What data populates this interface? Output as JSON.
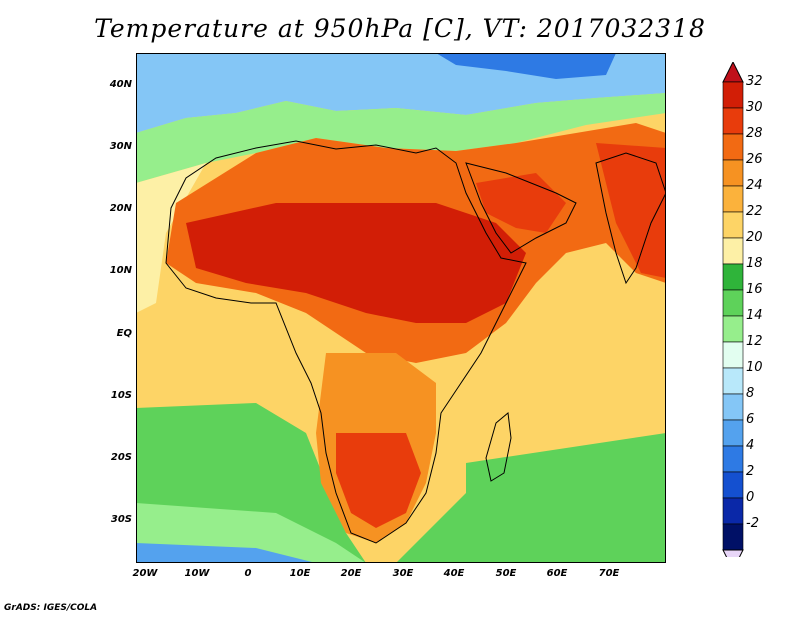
{
  "title": "Temperature at 950hPa [C], VT: 2017032318",
  "footer": "GrADS: IGES/COLA",
  "map": {
    "lon_range": [
      -23,
      80
    ],
    "lat_range": [
      -37,
      45
    ],
    "lat_ticks": [
      {
        "value": 40,
        "label": "40N"
      },
      {
        "value": 30,
        "label": "30N"
      },
      {
        "value": 20,
        "label": "20N"
      },
      {
        "value": 10,
        "label": "10N"
      },
      {
        "value": 0,
        "label": "EQ"
      },
      {
        "value": -10,
        "label": "10S"
      },
      {
        "value": -20,
        "label": "20S"
      },
      {
        "value": -30,
        "label": "30S"
      }
    ],
    "lon_ticks": [
      {
        "value": -20,
        "label": "20W"
      },
      {
        "value": -10,
        "label": "10W"
      },
      {
        "value": 0,
        "label": "0"
      },
      {
        "value": 10,
        "label": "10E"
      },
      {
        "value": 20,
        "label": "20E"
      },
      {
        "value": 30,
        "label": "30E"
      },
      {
        "value": 40,
        "label": "40E"
      },
      {
        "value": 50,
        "label": "50E"
      },
      {
        "value": 60,
        "label": "60E"
      },
      {
        "value": 70,
        "label": "70E"
      }
    ]
  },
  "colorbar": {
    "levels": [
      "32",
      "30",
      "28",
      "26",
      "24",
      "22",
      "20",
      "18",
      "16",
      "14",
      "12",
      "10",
      "8",
      "6",
      "4",
      "2",
      "0",
      "-2"
    ],
    "colors": [
      "#d21e06",
      "#e83c0c",
      "#f26a13",
      "#f69222",
      "#fbb23c",
      "#fdd466",
      "#fdf0a6",
      "#2fb43a",
      "#5ed25a",
      "#96ee8c",
      "#e2fef0",
      "#b8e8fa",
      "#84c6f6",
      "#54a2ee",
      "#2e7ae4",
      "#1450d0",
      "#0a28a8",
      "#001066"
    ],
    "over_color": "#c0101a",
    "under_color": "#e8d6f8"
  }
}
